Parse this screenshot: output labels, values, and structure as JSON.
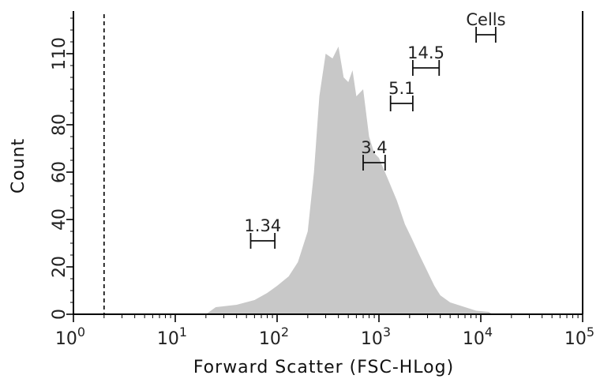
{
  "chart_data": {
    "type": "histogram",
    "xlabel": "Forward Scatter (FSC-HLog)",
    "ylabel": "Count",
    "x_scale": "log",
    "xlim": [
      1,
      100000
    ],
    "ylim": [
      0,
      128
    ],
    "x_ticks": [
      {
        "value": 1,
        "base": "10",
        "exp": "0"
      },
      {
        "value": 10,
        "base": "10",
        "exp": "1"
      },
      {
        "value": 100,
        "base": "10",
        "exp": "2"
      },
      {
        "value": 1000,
        "base": "10",
        "exp": "3"
      },
      {
        "value": 10000,
        "base": "10",
        "exp": "4"
      },
      {
        "value": 100000,
        "base": "10",
        "exp": "5"
      }
    ],
    "y_ticks": [
      0,
      20,
      40,
      60,
      80,
      110
    ],
    "threshold_x": 2.0,
    "histogram_color": "#c8c8c8",
    "histogram_points": [
      [
        20,
        0
      ],
      [
        25,
        3
      ],
      [
        40,
        4
      ],
      [
        60,
        6
      ],
      [
        80,
        9
      ],
      [
        100,
        12
      ],
      [
        130,
        16
      ],
      [
        160,
        22
      ],
      [
        200,
        35
      ],
      [
        230,
        60
      ],
      [
        260,
        92
      ],
      [
        300,
        110
      ],
      [
        350,
        108
      ],
      [
        400,
        113
      ],
      [
        450,
        100
      ],
      [
        500,
        98
      ],
      [
        550,
        103
      ],
      [
        600,
        92
      ],
      [
        700,
        95
      ],
      [
        800,
        75
      ],
      [
        900,
        68
      ],
      [
        1000,
        66
      ],
      [
        1200,
        58
      ],
      [
        1500,
        48
      ],
      [
        1800,
        38
      ],
      [
        2100,
        32
      ],
      [
        2500,
        25
      ],
      [
        3000,
        18
      ],
      [
        3500,
        12
      ],
      [
        4000,
        8
      ],
      [
        5000,
        5
      ],
      [
        7000,
        3
      ],
      [
        9000,
        1.5
      ],
      [
        12000,
        1
      ],
      [
        13000,
        0
      ]
    ],
    "gates": [
      {
        "label": "1.34",
        "x_start": 55,
        "x_end": 95,
        "y": 31
      },
      {
        "label": "3.4",
        "x_start": 700,
        "x_end": 1150,
        "y": 64
      },
      {
        "label": "5.1",
        "x_start": 1300,
        "x_end": 2150,
        "y": 89
      },
      {
        "label": "14.5",
        "x_start": 2150,
        "x_end": 3900,
        "y": 104
      },
      {
        "label": "Cells",
        "x_start": 9000,
        "x_end": 14000,
        "y": 118
      }
    ]
  }
}
